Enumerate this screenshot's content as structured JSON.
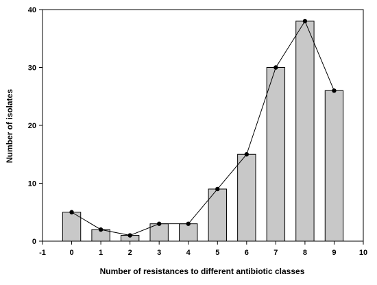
{
  "chart_data": {
    "type": "bar",
    "title": "",
    "xlabel": "Number of resistances to different antibiotic classes",
    "ylabel": "Number of isolates",
    "x": [
      0,
      1,
      2,
      3,
      4,
      5,
      6,
      7,
      8,
      9
    ],
    "values": [
      5,
      2,
      1,
      3,
      3,
      9,
      15,
      30,
      38,
      26
    ],
    "line_overlay": {
      "x": [
        0,
        1,
        2,
        3,
        4,
        5,
        6,
        7,
        8,
        9
      ],
      "y": [
        5,
        2,
        1,
        3,
        3,
        9,
        15,
        30,
        38,
        26
      ]
    },
    "xlim": [
      -1,
      10
    ],
    "ylim": [
      0,
      40
    ],
    "xticks": [
      "-1",
      "0",
      "1",
      "2",
      "3",
      "4",
      "5",
      "6",
      "7",
      "8",
      "9",
      "10"
    ],
    "yticks": [
      "0",
      "10",
      "20",
      "30",
      "40"
    ],
    "grid": false,
    "legend": "none",
    "colors": {
      "bar_fill": "#c8c8c8",
      "bar_stroke": "#000000",
      "line": "#000000",
      "marker": "#000000"
    }
  }
}
